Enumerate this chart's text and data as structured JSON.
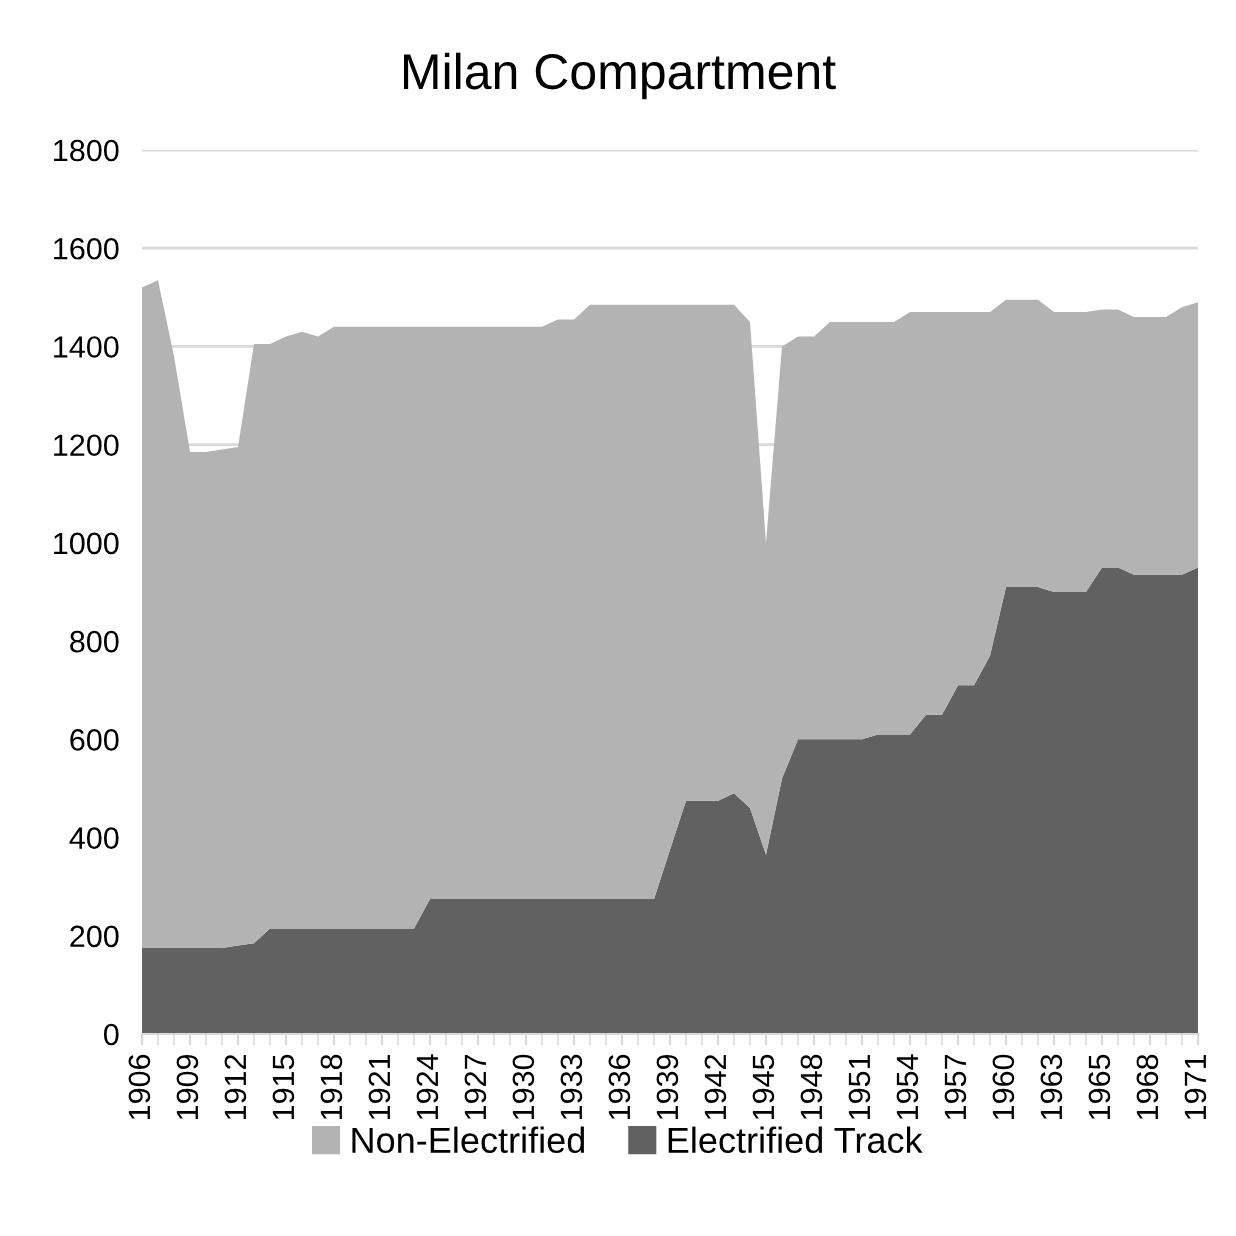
{
  "chart_data": {
    "type": "area",
    "title": "Milan Compartment",
    "stacked": true,
    "categories": [
      "1906",
      null,
      null,
      "1909",
      null,
      null,
      "1912",
      null,
      null,
      "1915",
      null,
      null,
      "1918",
      null,
      null,
      "1921",
      null,
      null,
      "1924",
      null,
      null,
      "1927",
      null,
      null,
      "1930",
      null,
      null,
      "1933",
      null,
      null,
      "1936",
      null,
      null,
      "1939",
      null,
      null,
      "1942",
      null,
      null,
      "1945",
      null,
      null,
      "1948",
      null,
      null,
      "1951",
      null,
      null,
      "1954",
      null,
      null,
      "1957",
      null,
      null,
      "1960",
      null,
      null,
      "1963",
      null,
      null,
      "1965",
      null,
      null,
      "1968",
      null,
      null,
      "1971"
    ],
    "series": [
      {
        "name": "Electrified Track",
        "color": "#616161",
        "values": [
          175,
          175,
          175,
          175,
          175,
          175,
          180,
          185,
          215,
          215,
          215,
          215,
          215,
          215,
          215,
          215,
          215,
          215,
          275,
          275,
          275,
          275,
          275,
          275,
          275,
          275,
          275,
          275,
          275,
          275,
          275,
          275,
          275,
          375,
          475,
          475,
          475,
          490,
          460,
          365,
          520,
          600,
          600,
          600,
          600,
          600,
          610,
          610,
          610,
          650,
          650,
          710,
          710,
          770,
          910,
          910,
          910,
          900,
          900,
          900,
          950,
          950,
          935,
          935,
          935,
          935,
          950
        ]
      },
      {
        "name": "Non-Electrified",
        "color": "#b3b3b3",
        "values": [
          1345,
          1360,
          1205,
          1010,
          1010,
          1015,
          1015,
          1220,
          1190,
          1205,
          1215,
          1205,
          1225,
          1225,
          1225,
          1225,
          1225,
          1225,
          1165,
          1165,
          1165,
          1165,
          1165,
          1165,
          1165,
          1165,
          1180,
          1180,
          1210,
          1210,
          1210,
          1210,
          1210,
          1110,
          1010,
          1010,
          1010,
          995,
          990,
          635,
          880,
          820,
          820,
          850,
          850,
          850,
          840,
          840,
          860,
          820,
          820,
          760,
          760,
          700,
          585,
          585,
          585,
          570,
          570,
          570,
          525,
          525,
          525,
          525,
          525,
          545,
          540
        ]
      }
    ],
    "ylim": [
      0,
      1800
    ],
    "yticks": [
      0,
      200,
      400,
      600,
      800,
      1000,
      1200,
      1400,
      1600,
      1800
    ],
    "grid": "y",
    "legend": "bottom"
  }
}
